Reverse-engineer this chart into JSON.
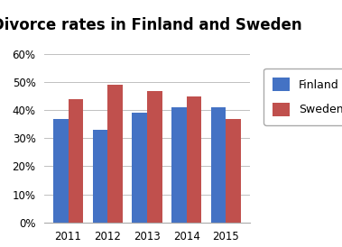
{
  "title": "Divorce rates in Finland and Sweden",
  "years": [
    2011,
    2012,
    2013,
    2014,
    2015
  ],
  "finland": [
    37,
    33,
    39,
    41,
    41
  ],
  "sweden": [
    44,
    49,
    47,
    45,
    37
  ],
  "finland_color": "#4472C4",
  "sweden_color": "#C0504D",
  "ylim": [
    0,
    60
  ],
  "yticks": [
    0,
    10,
    20,
    30,
    40,
    50,
    60
  ],
  "legend_labels": [
    "Finland",
    "Sweden"
  ],
  "background_color": "#ffffff",
  "title_fontsize": 12,
  "bar_width": 0.38,
  "figsize": [
    3.79,
    2.74
  ],
  "dpi": 100
}
